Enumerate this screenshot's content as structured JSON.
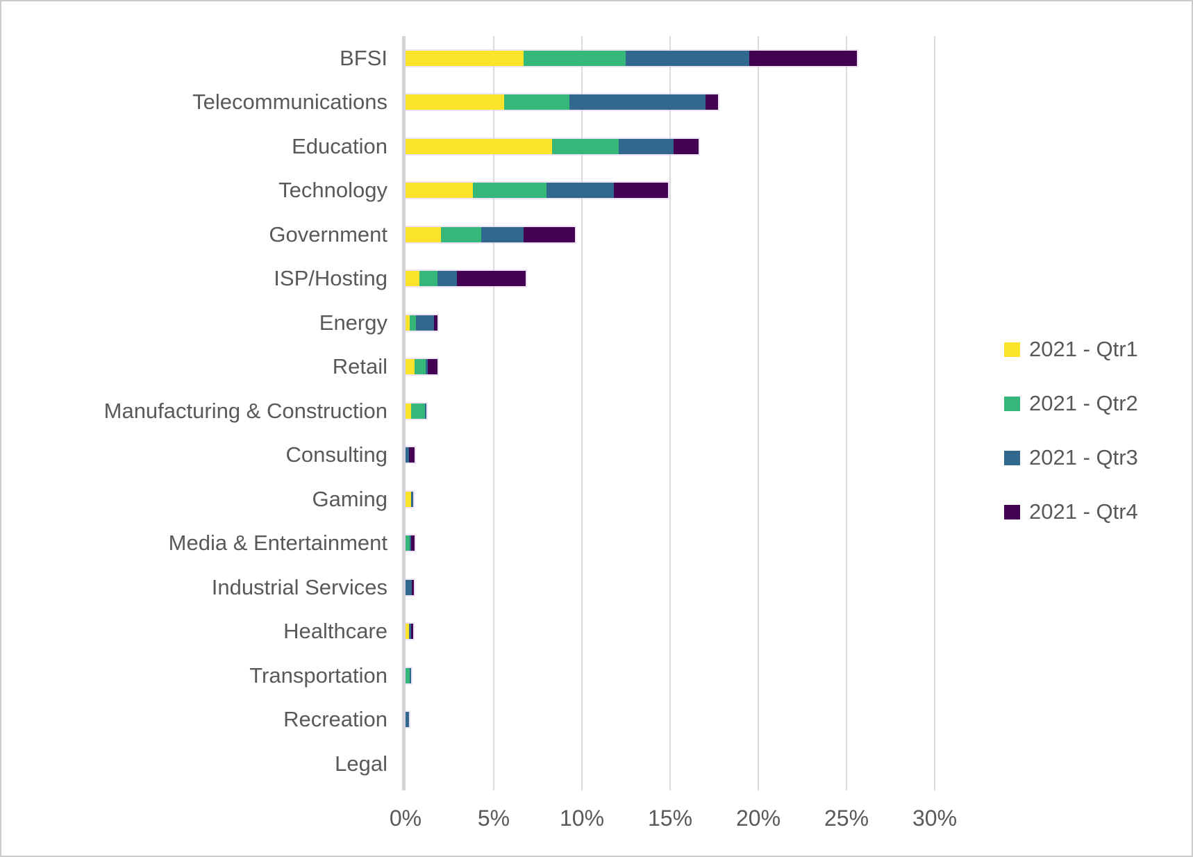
{
  "chart_data": {
    "type": "bar",
    "orientation": "horizontal",
    "stacked": true,
    "title": "",
    "xlabel": "",
    "ylabel": "",
    "grid": "vertical",
    "legend_position": "right",
    "xlim": [
      0,
      30
    ],
    "x_ticks": [
      "0%",
      "5%",
      "10%",
      "15%",
      "20%",
      "25%",
      "30%"
    ],
    "x_tick_values": [
      0,
      5,
      10,
      15,
      20,
      25,
      30
    ],
    "categories": [
      "BFSI",
      "Telecommunications",
      "Education",
      "Technology",
      "Government",
      "ISP/Hosting",
      "Energy",
      "Retail",
      "Manufacturing & Construction",
      "Consulting",
      "Gaming",
      "Media & Entertainment",
      "Industrial Services",
      "Healthcare",
      "Transportation",
      "Recreation",
      "Legal"
    ],
    "series": [
      {
        "name": "2021 - Qtr1",
        "key": "qtr1",
        "color": "#FCE32B",
        "values": [
          6.7,
          5.6,
          8.3,
          3.8,
          2.0,
          0.8,
          0.25,
          0.5,
          0.3,
          0,
          0.3,
          0,
          0,
          0.2,
          0,
          0,
          0
        ]
      },
      {
        "name": "2021 - Qtr2",
        "key": "qtr2",
        "color": "#35B779",
        "values": [
          5.8,
          3.7,
          3.8,
          4.2,
          2.3,
          1.0,
          0.35,
          0.65,
          0.8,
          0,
          0,
          0.25,
          0,
          0,
          0.25,
          0,
          0
        ]
      },
      {
        "name": "2021 - Qtr3",
        "key": "qtr3",
        "color": "#31688E",
        "values": [
          7.0,
          7.7,
          3.1,
          3.8,
          2.4,
          1.1,
          1.0,
          0.1,
          0.1,
          0.2,
          0.15,
          0.05,
          0.35,
          0.1,
          0.05,
          0.2,
          0
        ]
      },
      {
        "name": "2021 - Qtr4",
        "key": "qtr4",
        "color": "#440154",
        "values": [
          6.1,
          0.7,
          1.4,
          3.1,
          2.9,
          3.9,
          0.2,
          0.55,
          0,
          0.3,
          0,
          0.2,
          0.12,
          0.15,
          0,
          0,
          0
        ]
      }
    ],
    "colors": {
      "grid": "#DADADA",
      "axis": "#D4D4D4",
      "text": "#595959",
      "background": "#FFFFFF"
    }
  }
}
